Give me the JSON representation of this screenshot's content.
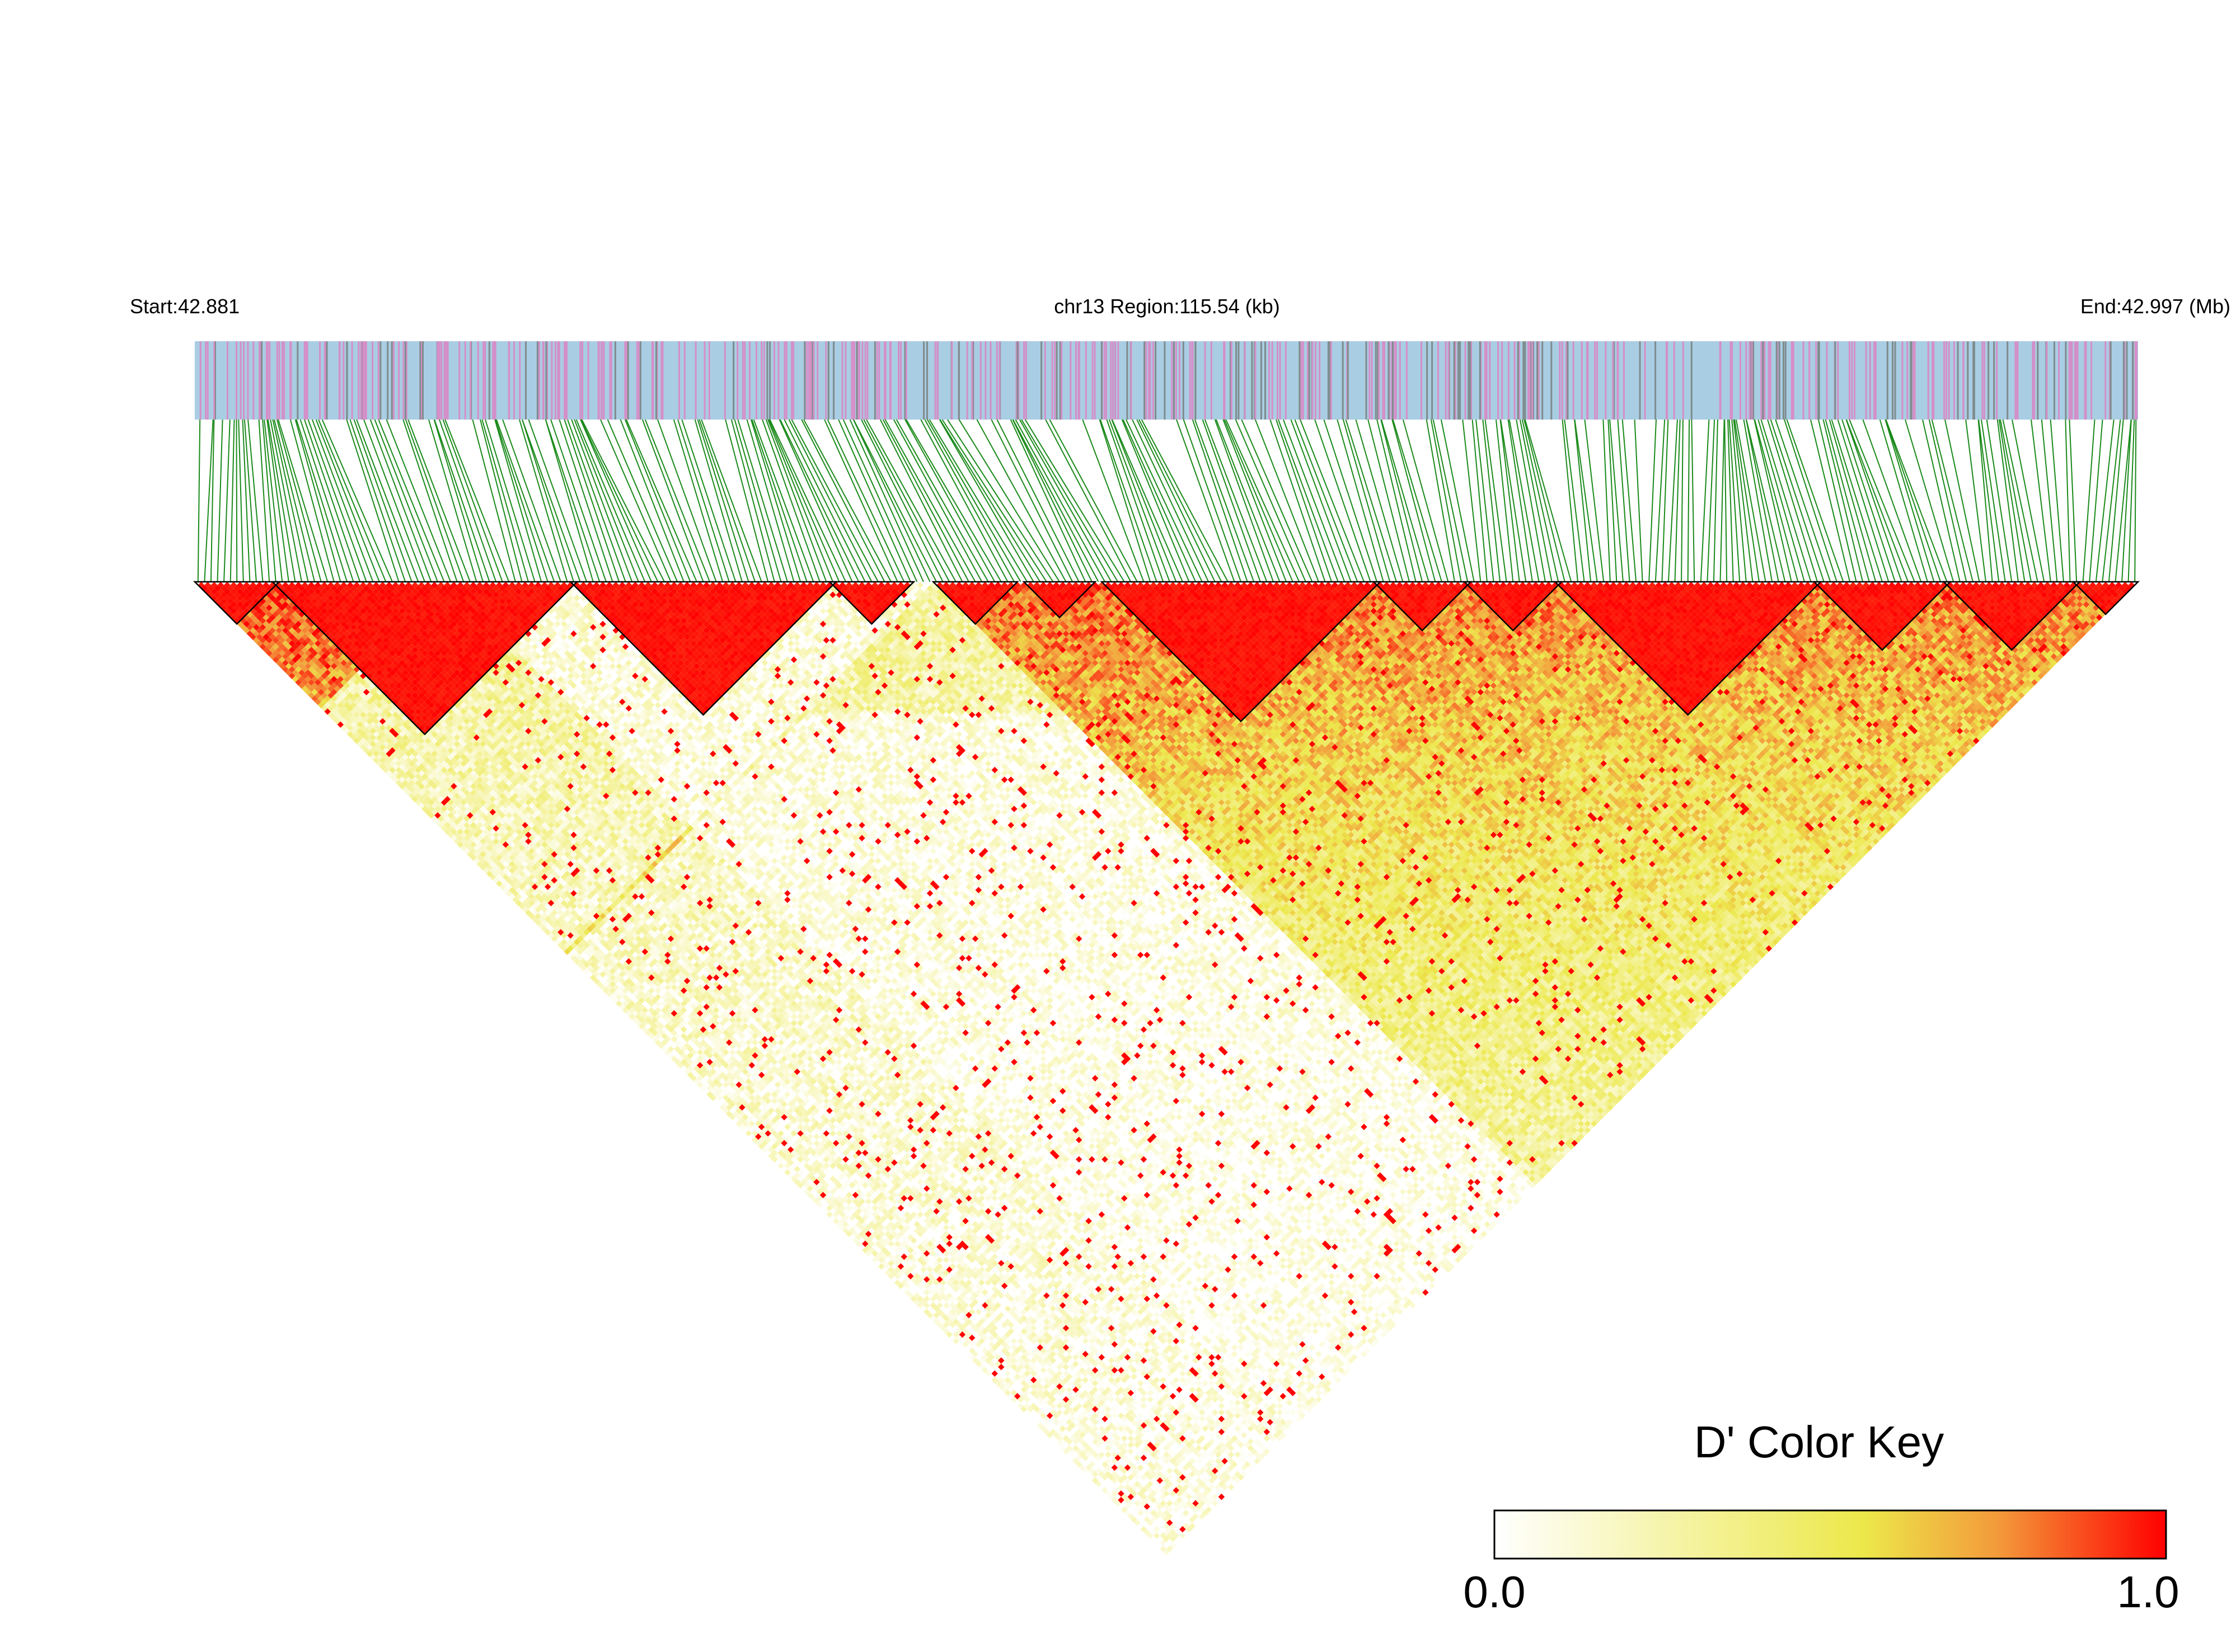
{
  "chart_data": {
    "type": "heatmap",
    "subtype": "linkage-disequilibrium-triangle",
    "header": {
      "start_label": "Start:42.881",
      "region_label": "chr13 Region:115.54 (kb)",
      "end_label": "End:42.997 (Mb)"
    },
    "region": {
      "chromosome": "chr13",
      "start_mb": 42.881,
      "end_mb": 42.997,
      "length_kb": 115.54
    },
    "metric": "D'",
    "color_key": {
      "title": "D' Color Key",
      "min_label": "0.0",
      "max_label": "1.0",
      "range": [
        0,
        1
      ],
      "stops": [
        "#ffffff",
        "#f2ef4a",
        "#f2a33a",
        "#ff0000"
      ]
    },
    "colors": {
      "annotation_background": "#a9cde3",
      "annotation_marks": [
        "#d48fc8",
        "#7f8c8d"
      ],
      "snp_connector": "#1a8a1a",
      "high_ld": "#ff0000",
      "low_ld": "#ffffff",
      "block_outline": "#000000"
    },
    "snp_count": 300,
    "ld_blocks": [
      {
        "first_snp": 0,
        "last_snp": 12
      },
      {
        "first_snp": 12,
        "last_snp": 58
      },
      {
        "first_snp": 58,
        "last_snp": 98
      },
      {
        "first_snp": 98,
        "last_snp": 110
      },
      {
        "first_snp": 114,
        "last_snp": 126
      },
      {
        "first_snp": 128,
        "last_snp": 138
      },
      {
        "first_snp": 140,
        "last_snp": 182
      },
      {
        "first_snp": 182,
        "last_snp": 196
      },
      {
        "first_snp": 196,
        "last_snp": 210
      },
      {
        "first_snp": 210,
        "last_snp": 250
      },
      {
        "first_snp": 250,
        "last_snp": 270
      },
      {
        "first_snp": 270,
        "last_snp": 290
      },
      {
        "first_snp": 290,
        "last_snp": 299
      }
    ]
  }
}
